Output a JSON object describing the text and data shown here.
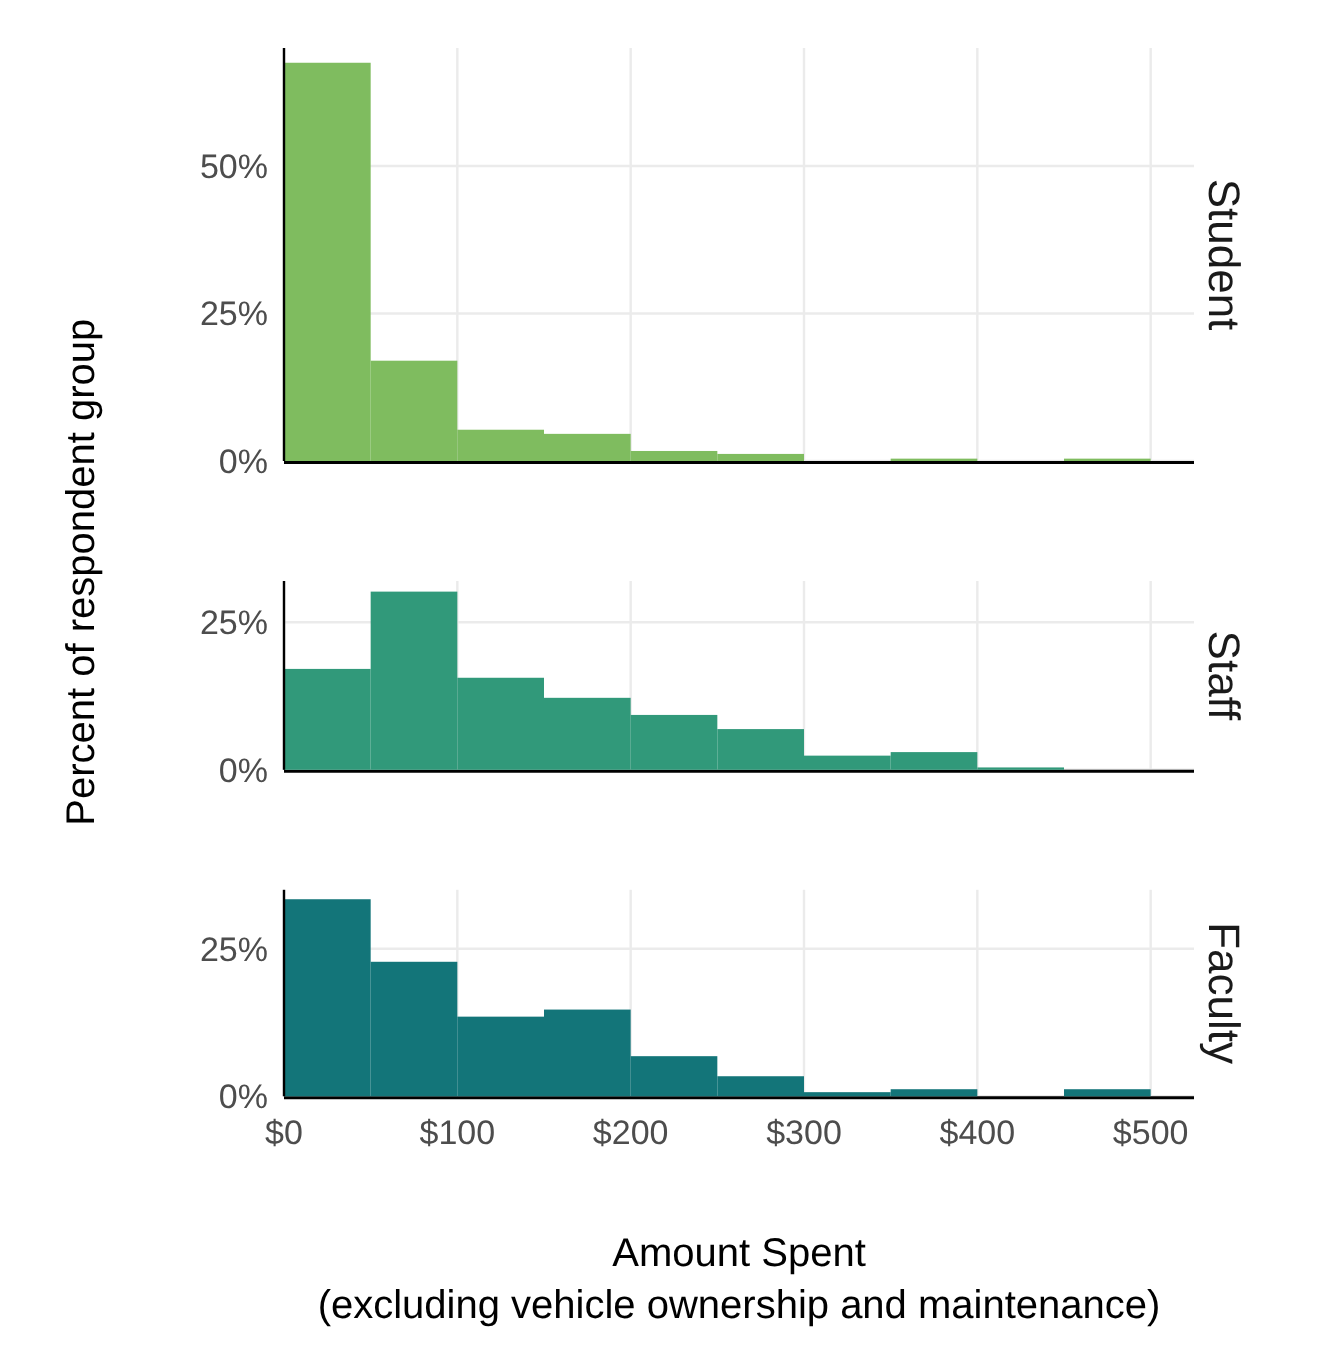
{
  "chart_data": [
    {
      "type": "histogram",
      "title": "Student",
      "bins": [
        0,
        50,
        100,
        150,
        200,
        250,
        300,
        350,
        400,
        450,
        500
      ],
      "values": [
        67.5,
        17,
        5.3,
        4.6,
        1.7,
        1.2,
        0,
        0.4,
        0,
        0.4
      ],
      "color": "#7fbc5f",
      "xlim": [
        0,
        525
      ],
      "ylim": [
        0,
        70
      ],
      "xticks": [
        {
          "value": 0,
          "label": null
        },
        {
          "value": 100,
          "label": null
        },
        {
          "value": 200,
          "label": null
        },
        {
          "value": 300,
          "label": null
        },
        {
          "value": 400,
          "label": null
        },
        {
          "value": 500,
          "label": null
        }
      ],
      "yticks": [
        {
          "value": 0,
          "label": "0%"
        },
        {
          "value": 25,
          "label": "25%"
        },
        {
          "value": 50,
          "label": "50%"
        }
      ],
      "grid": true,
      "tick_labels": "y"
    },
    {
      "type": "histogram",
      "title": "Staff",
      "ylabel": "Percent of respondent group",
      "bins": [
        0,
        50,
        100,
        150,
        200,
        250,
        300,
        350,
        400,
        450,
        500
      ],
      "values": [
        17.1,
        30.2,
        15.6,
        12.2,
        9.3,
        6.9,
        2.4,
        3,
        0.4,
        0
      ],
      "color": "#31997a",
      "xlim": [
        0,
        525
      ],
      "ylim": [
        0,
        32
      ],
      "xticks": [
        {
          "value": 0,
          "label": null
        },
        {
          "value": 100,
          "label": null
        },
        {
          "value": 200,
          "label": null
        },
        {
          "value": 300,
          "label": null
        },
        {
          "value": 400,
          "label": null
        },
        {
          "value": 500,
          "label": null
        }
      ],
      "yticks": [
        {
          "value": 0,
          "label": "0%"
        },
        {
          "value": 25,
          "label": "25%"
        }
      ],
      "grid": true,
      "tick_labels": "y"
    },
    {
      "type": "histogram",
      "title": "Faculty",
      "xlabel": "Amount Spent\n(excluding vehicle ownership and maintenance)",
      "bins": [
        0,
        50,
        100,
        150,
        200,
        250,
        300,
        350,
        400,
        450,
        500
      ],
      "values": [
        33.4,
        22.8,
        13.5,
        14.7,
        6.8,
        3.4,
        0.7,
        1.2,
        0,
        1.2
      ],
      "color": "#137579",
      "xlim": [
        0,
        525
      ],
      "ylim": [
        0,
        35
      ],
      "xticks": [
        {
          "value": 0,
          "label": "$0"
        },
        {
          "value": 100,
          "label": "$100"
        },
        {
          "value": 200,
          "label": "$200"
        },
        {
          "value": 300,
          "label": "$300"
        },
        {
          "value": 400,
          "label": "$400"
        },
        {
          "value": 500,
          "label": "$500"
        }
      ],
      "yticks": [
        {
          "value": 0,
          "label": "0%"
        },
        {
          "value": 25,
          "label": "25%"
        }
      ],
      "grid": true
    }
  ]
}
